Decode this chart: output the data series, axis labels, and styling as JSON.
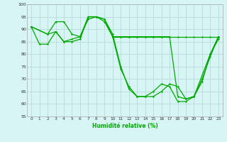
{
  "xlabel": "Humidité relative (%)",
  "background_color": "#d8f5f5",
  "grid_color": "#b8dada",
  "line_color": "#00aa00",
  "ylim": [
    55,
    100
  ],
  "xlim": [
    -0.5,
    23.5
  ],
  "yticks": [
    55,
    60,
    65,
    70,
    75,
    80,
    85,
    90,
    95,
    100
  ],
  "xticks": [
    0,
    1,
    2,
    3,
    4,
    5,
    6,
    7,
    8,
    9,
    10,
    11,
    12,
    13,
    14,
    15,
    16,
    17,
    18,
    19,
    20,
    21,
    22,
    23
  ],
  "series1_x": [
    0,
    1,
    2,
    3,
    4,
    5,
    6,
    7,
    8,
    9,
    10,
    11,
    12,
    13,
    14,
    15,
    16,
    17,
    18,
    19,
    20,
    21,
    22,
    23
  ],
  "series1_y": [
    91,
    84,
    84,
    89,
    85,
    85,
    86,
    95,
    95,
    93,
    87,
    74,
    67,
    63,
    63,
    63,
    65,
    68,
    67,
    62,
    63,
    70,
    79,
    87
  ],
  "series2_x": [
    0,
    2,
    3,
    4,
    5,
    6,
    7,
    8,
    9,
    10,
    11,
    12,
    13,
    14,
    15,
    16,
    17,
    18,
    19,
    20,
    21,
    22,
    23
  ],
  "series2_y": [
    91,
    88,
    93,
    93,
    88,
    87,
    94,
    95,
    94,
    88,
    75,
    66,
    63,
    63,
    65,
    68,
    67,
    61,
    61,
    63,
    69,
    80,
    86
  ],
  "series3_x": [
    0,
    2,
    3,
    4,
    5,
    6,
    7,
    8,
    9,
    10,
    11,
    12,
    13,
    14,
    15,
    16,
    17,
    18,
    19,
    20,
    22,
    23
  ],
  "series3_y": [
    91,
    88,
    89,
    85,
    86,
    87,
    95,
    95,
    94,
    87,
    87,
    87,
    87,
    87,
    87,
    87,
    87,
    63,
    62,
    63,
    80,
    87
  ],
  "series4_x": [
    10,
    11,
    12,
    13,
    14,
    15,
    16,
    17,
    18,
    19,
    20,
    21,
    22,
    23
  ],
  "series4_y": [
    87,
    87,
    87,
    87,
    87,
    87,
    87,
    87,
    87,
    87,
    87,
    87,
    87,
    87
  ]
}
